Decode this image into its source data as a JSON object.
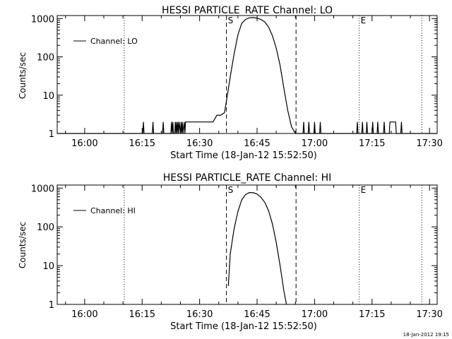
{
  "footer": {
    "timestamp": "18-Jan-2012 19:15"
  },
  "chart_data": [
    {
      "type": "line",
      "title": "HESSI PARTICLE_RATE Channel: LO",
      "xlabel": "Start Time (18-Jan-12 15:52:50)",
      "ylabel": "Counts/sec",
      "yscale": "log",
      "ylim": [
        1,
        1200
      ],
      "xlim": [
        "15:52:50",
        "17:32:00"
      ],
      "x_ticks": [
        "16:00",
        "16:15",
        "16:30",
        "16:45",
        "17:00",
        "17:15",
        "17:30"
      ],
      "y_ticks": [
        "1",
        "10",
        "100",
        "1000"
      ],
      "legend": {
        "label": "Channel: LO",
        "placement": "top-left"
      },
      "markers": [
        {
          "type": "dotted",
          "x": "16:10:20"
        },
        {
          "type": "dashed",
          "x": "16:37:00",
          "label": "S"
        },
        {
          "type": "dashed",
          "x": "16:55:10"
        },
        {
          "type": "dotted",
          "x": "17:11:40",
          "label": "E"
        },
        {
          "type": "dotted",
          "x": "17:28:00"
        }
      ],
      "series": [
        {
          "x": [
            "15:52:50",
            "16:15:10",
            "16:15:20",
            "16:15:30",
            "16:17:40",
            "16:17:50",
            "16:18:00",
            "16:20:20",
            "16:20:30",
            "16:20:40",
            "16:22:30",
            "16:22:40",
            "16:22:50",
            "16:23:00",
            "16:23:10",
            "16:23:30",
            "16:23:40",
            "16:23:50",
            "16:24:00",
            "16:24:10",
            "16:24:20",
            "16:24:30",
            "16:24:40",
            "16:25:00",
            "16:25:10",
            "16:25:20",
            "16:25:30",
            "16:25:40",
            "16:26:00",
            "16:26:10",
            "16:26:20",
            "16:26:30",
            "16:33:30",
            "16:34:30",
            "16:35:30",
            "16:36:30",
            "16:37:00",
            "16:38:00",
            "16:39:00",
            "16:40:00",
            "16:41:00",
            "16:42:00",
            "16:43:00",
            "16:44:00",
            "16:45:00",
            "16:46:00",
            "16:47:00",
            "16:48:00",
            "16:49:00",
            "16:50:00",
            "16:51:00",
            "16:52:00",
            "16:53:00",
            "16:54:00",
            "16:55:00",
            "16:55:40",
            "16:56:20",
            "16:57:00",
            "16:57:10",
            "16:57:20",
            "16:58:20",
            "16:58:30",
            "16:58:40",
            "16:59:50",
            "17:00:00",
            "17:00:10",
            "17:01:20",
            "17:01:30",
            "17:01:40",
            "17:11:00",
            "17:11:10",
            "17:11:20",
            "17:12:20",
            "17:12:30",
            "17:12:40",
            "17:13:30",
            "17:13:40",
            "17:13:50",
            "17:15:00",
            "17:15:10",
            "17:15:20",
            "17:16:20",
            "17:16:30",
            "17:16:40",
            "17:18:00",
            "17:18:10",
            "17:18:20",
            "17:19:30",
            "17:19:40",
            "17:20:30",
            "17:21:00",
            "17:21:10",
            "17:21:20",
            "17:22:30",
            "17:22:40",
            "17:22:50",
            "17:32:00"
          ],
          "y": [
            1,
            1,
            2,
            1,
            1,
            2,
            1,
            1,
            2,
            1,
            1,
            2,
            1,
            2,
            1,
            1,
            2,
            1,
            2,
            1,
            2,
            1,
            2,
            1,
            2,
            1,
            2,
            1,
            2,
            1,
            2,
            2,
            2,
            3,
            3,
            3.5,
            7,
            30,
            120,
            380,
            750,
            950,
            1050,
            1060,
            1030,
            950,
            820,
            600,
            360,
            170,
            60,
            15,
            4,
            1.5,
            1,
            1,
            1,
            1,
            2,
            1,
            1,
            2,
            1,
            1,
            2,
            1,
            1,
            2,
            1,
            1,
            2,
            1,
            1,
            2,
            1,
            1,
            2,
            1,
            1,
            2,
            1,
            1,
            2,
            1,
            1,
            2,
            1,
            1,
            2,
            2,
            2,
            2,
            1,
            1,
            2,
            1,
            1
          ]
        }
      ]
    },
    {
      "type": "line",
      "title": "HESSI PARTICLE_RATE Channel: HI",
      "xlabel": "Start Time (18-Jan-12 15:52:50)",
      "ylabel": "Counts/sec",
      "yscale": "log",
      "ylim": [
        1,
        1200
      ],
      "xlim": [
        "15:52:50",
        "17:32:00"
      ],
      "x_ticks": [
        "16:00",
        "16:15",
        "16:30",
        "16:45",
        "17:00",
        "17:15",
        "17:30"
      ],
      "y_ticks": [
        "1",
        "10",
        "100",
        "1000"
      ],
      "legend": {
        "label": "Channel: HI",
        "placement": "top-left"
      },
      "markers": [
        {
          "type": "dotted",
          "x": "16:10:20"
        },
        {
          "type": "dashed",
          "x": "16:37:00",
          "label": "S"
        },
        {
          "type": "dashed",
          "x": "16:55:10"
        },
        {
          "type": "dotted",
          "x": "17:11:40",
          "label": "E"
        },
        {
          "type": "dotted",
          "x": "17:28:00"
        }
      ],
      "series": [
        {
          "x": [
            "16:37:30",
            "16:38:00",
            "16:39:00",
            "16:40:00",
            "16:41:00",
            "16:42:00",
            "16:43:00",
            "16:44:00",
            "16:45:00",
            "16:46:00",
            "16:47:00",
            "16:48:00",
            "16:49:00",
            "16:50:00",
            "16:51:00",
            "16:52:00",
            "16:52:40"
          ],
          "y": [
            3,
            20,
            90,
            250,
            500,
            680,
            770,
            760,
            700,
            580,
            430,
            260,
            120,
            40,
            10,
            2.2,
            1
          ]
        }
      ]
    }
  ]
}
